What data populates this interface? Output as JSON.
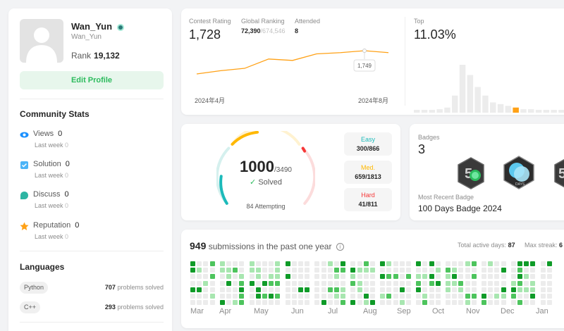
{
  "profile": {
    "name": "Wan_Yun",
    "handle": "Wan_Yun",
    "rank_label": "Rank",
    "rank_value": "19,132",
    "edit_button": "Edit Profile"
  },
  "community": {
    "title": "Community Stats",
    "items": [
      {
        "label": "Views",
        "value": "0",
        "last_week_label": "Last week",
        "last_week_value": "0",
        "icon": "eye-icon",
        "color": "#1a90ff"
      },
      {
        "label": "Solution",
        "value": "0",
        "last_week_label": "Last week",
        "last_week_value": "0",
        "icon": "checkbox-icon",
        "color": "#4cb4f7"
      },
      {
        "label": "Discuss",
        "value": "0",
        "last_week_label": "Last week",
        "last_week_value": "0",
        "icon": "chat-bubble-icon",
        "color": "#2db5a3"
      },
      {
        "label": "Reputation",
        "value": "0",
        "last_week_label": "Last week",
        "last_week_value": "0",
        "icon": "star-icon",
        "color": "#ffa116"
      }
    ]
  },
  "languages": {
    "title": "Languages",
    "items": [
      {
        "name": "Python",
        "count": "707",
        "suffix": "problems solved"
      },
      {
        "name": "C++",
        "count": "293",
        "suffix": "problems solved"
      }
    ]
  },
  "contest": {
    "rating_label": "Contest Rating",
    "rating_value": "1,728",
    "global_label": "Global Ranking",
    "global_value": "72,390",
    "global_total": "/674,546",
    "attended_label": "Attended",
    "attended_value": "8",
    "tooltip": "1,749",
    "x_start": "2024年4月",
    "x_end": "2024年8月",
    "top_label": "Top",
    "top_value": "11.03%",
    "line_color": "#ffa116"
  },
  "chart_data": {
    "type": "line",
    "title": "Contest Rating",
    "x": [
      "2024年4月",
      "",
      "",
      "",
      "",
      "",
      "",
      "",
      "2024年8月"
    ],
    "series": [
      {
        "values": [
          1500,
          1535,
          1560,
          1660,
          1645,
          1715,
          1728,
          1749,
          1728
        ]
      }
    ],
    "annotations": [
      {
        "label": "1,749",
        "index": 7
      }
    ],
    "histogram": [
      1,
      1,
      1,
      2,
      3,
      10,
      28,
      22,
      15,
      10,
      6,
      5,
      4,
      3,
      2,
      2,
      1,
      1,
      1,
      1,
      1
    ]
  },
  "solved": {
    "count": "1000",
    "total": "/3490",
    "solved_label": "Solved",
    "attempting": "84 Attempting",
    "easy": {
      "label": "Easy",
      "value": "300/866",
      "color": "#1cbaba"
    },
    "medium": {
      "label": "Med.",
      "value": "659/1813",
      "color": "#ffb800"
    },
    "hard": {
      "label": "Hard",
      "value": "41/811",
      "color": "#f63737"
    }
  },
  "badges": {
    "title": "Badges",
    "count": "3",
    "recent_label": "Most Recent Badge",
    "recent_name": "100 Days Badge 2024",
    "icons": [
      "badge-50-days-icon",
      "badge-100-days-icon",
      "badge-partial-icon"
    ]
  },
  "heatmap": {
    "count": "949",
    "text": "submissions in the past one year",
    "active_label": "Total active days:",
    "active_value": "87",
    "streak_label": "Max streak:",
    "streak_value": "6",
    "months": [
      "Mar",
      "Apr",
      "May",
      "Jun",
      "Jul",
      "Aug",
      "Sep",
      "Oct",
      "Nov",
      "Dec",
      "Jan"
    ],
    "colors": [
      "#ececec",
      "#a8e6b0",
      "#4dc45d",
      "#0f9b28"
    ]
  }
}
